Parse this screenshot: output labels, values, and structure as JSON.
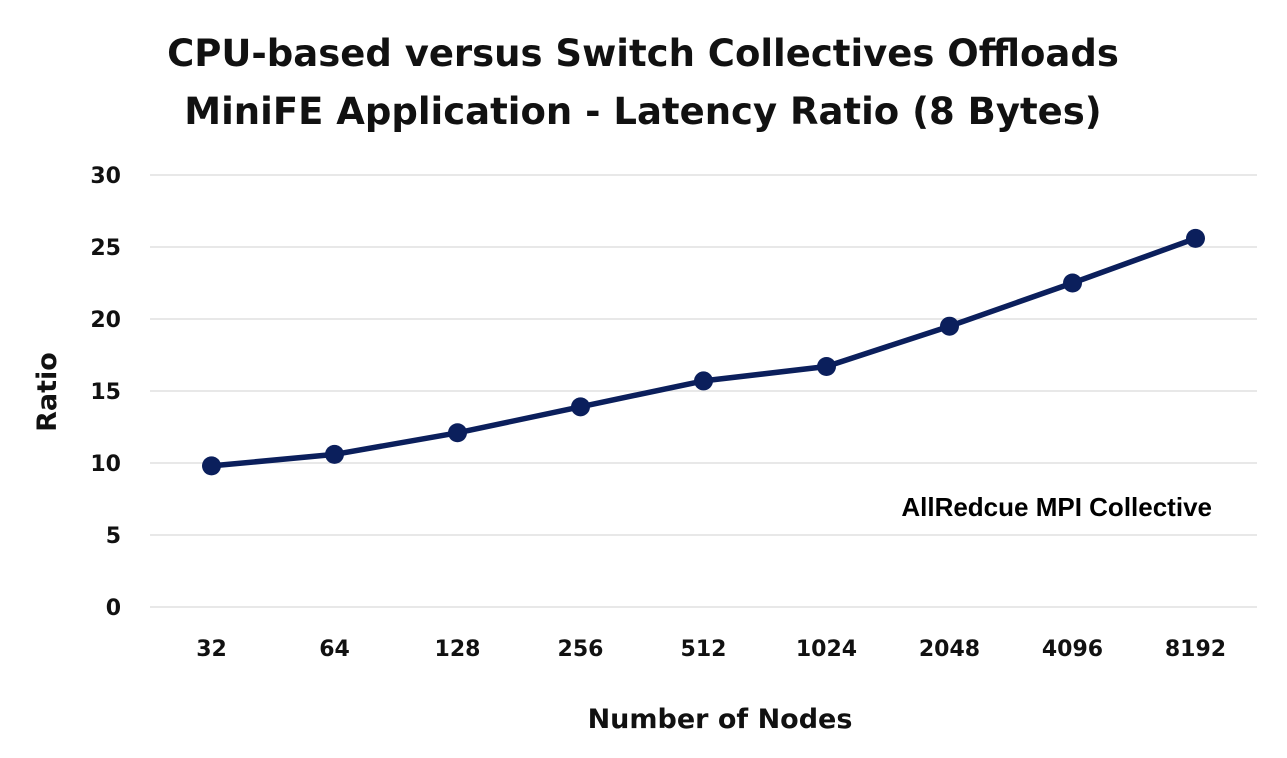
{
  "chart_data": {
    "type": "line",
    "title": [
      "CPU-based versus Switch Collectives Offloads",
      "MiniFE Application - Latency Ratio (8 Bytes)"
    ],
    "xlabel": "Number of Nodes",
    "ylabel": "Ratio",
    "categories": [
      "32",
      "64",
      "128",
      "256",
      "512",
      "1024",
      "2048",
      "4096",
      "8192"
    ],
    "yticks": [
      "0",
      "5",
      "10",
      "15",
      "20",
      "25",
      "30"
    ],
    "ylim": [
      0,
      30
    ],
    "grid": true,
    "legend": "none",
    "series": [
      {
        "values": [
          9.8,
          10.6,
          12.1,
          13.9,
          15.7,
          16.7,
          19.5,
          22.5,
          25.6
        ],
        "color": "#0b1f5c",
        "marker": "circle"
      }
    ],
    "annotation": "AllRedcue  MPI Collective"
  }
}
